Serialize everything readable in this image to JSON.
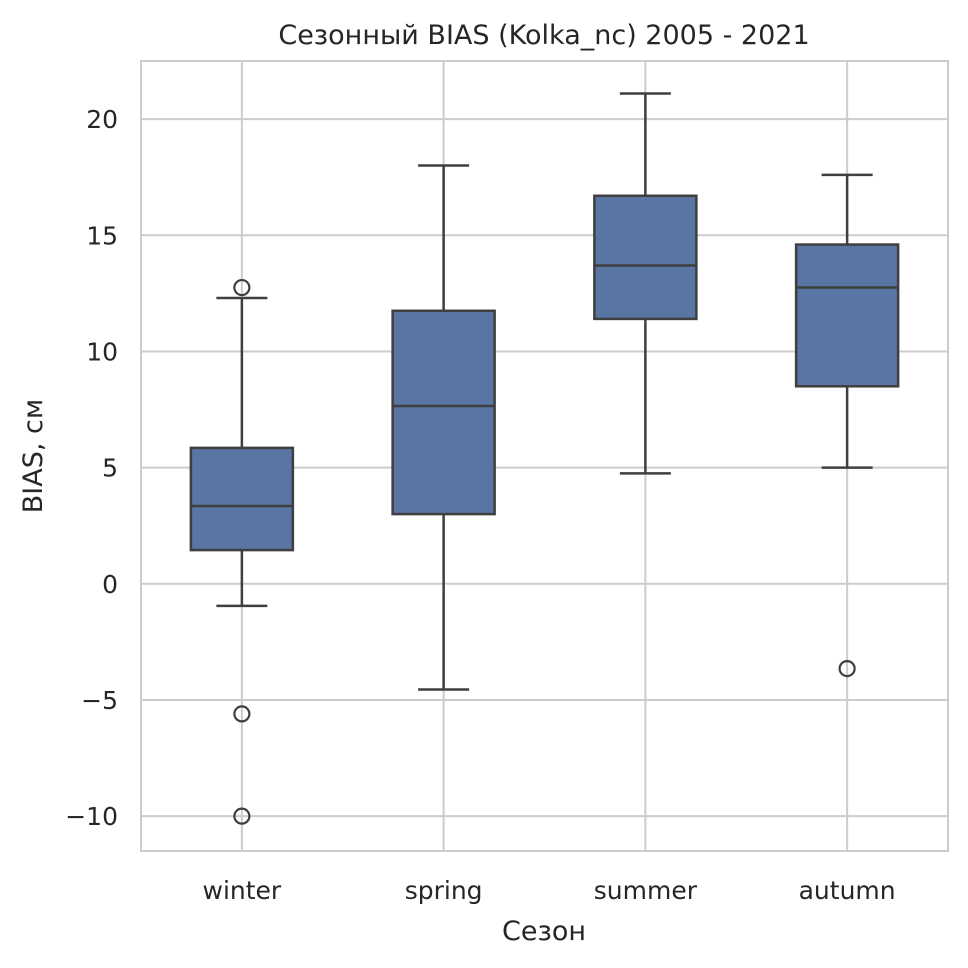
{
  "chart_data": {
    "type": "box",
    "title": "Сезонный BIAS (Kolka_nc) 2005 - 2021",
    "xlabel": "Сезон",
    "ylabel": "BIAS, см",
    "ylim": [
      -11.5,
      22.5
    ],
    "yticks": [
      {
        "value": 20,
        "label": "20"
      },
      {
        "value": 15,
        "label": "15"
      },
      {
        "value": 10,
        "label": "10"
      },
      {
        "value": 5,
        "label": "5"
      },
      {
        "value": 0,
        "label": "0"
      },
      {
        "value": -5,
        "label": "−5"
      },
      {
        "value": -10,
        "label": "−10"
      }
    ],
    "grid": true,
    "categories": [
      "winter",
      "spring",
      "summer",
      "autumn"
    ],
    "boxes": [
      {
        "category": "winter",
        "whisker_low": -0.95,
        "q1": 1.45,
        "median": 3.35,
        "q3": 5.85,
        "whisker_high": 12.3,
        "outliers": [
          12.75,
          -5.6,
          -10.0
        ]
      },
      {
        "category": "spring",
        "whisker_low": -4.55,
        "q1": 3.0,
        "median": 7.65,
        "q3": 11.75,
        "whisker_high": 18.0,
        "outliers": []
      },
      {
        "category": "summer",
        "whisker_low": 4.75,
        "q1": 11.4,
        "median": 13.7,
        "q3": 16.7,
        "whisker_high": 21.1,
        "outliers": []
      },
      {
        "category": "autumn",
        "whisker_low": 5.0,
        "q1": 8.5,
        "median": 12.75,
        "q3": 14.6,
        "whisker_high": 17.6,
        "outliers": [
          -3.65
        ]
      }
    ],
    "colors": {
      "box_fill": "#5875a4",
      "box_edge": "#3f3f3f",
      "grid": "#cccccc",
      "frame": "#cccccc"
    }
  }
}
